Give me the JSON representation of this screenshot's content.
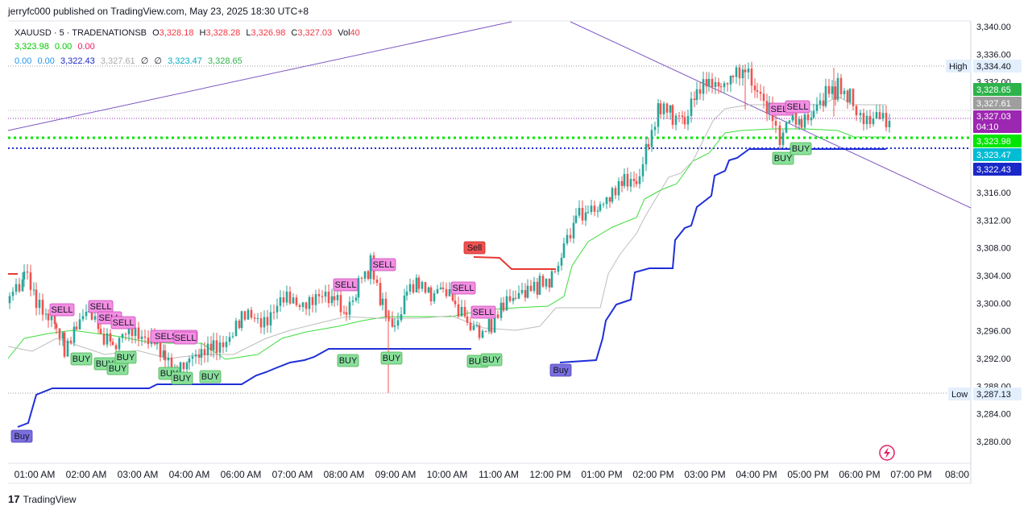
{
  "header": {
    "publisher": "jerryfc000 published on TradingView.com, May 23, 2025 18:30 UTC+8"
  },
  "legend": {
    "symbol": "XAUUSD · 5 · TRADENATIONSB",
    "o_label": "O",
    "o_value": "3,328.18",
    "h_label": "H",
    "h_value": "3,328.28",
    "l_label": "L",
    "l_value": "3,326.98",
    "c_label": "C",
    "c_value": "3,327.03",
    "vol_label": "Vol",
    "vol_value": "40",
    "row2": [
      "3,323.98",
      "0.00",
      "0.00"
    ],
    "row3": [
      "0.00",
      "0.00",
      "3,322.43",
      "3,327.61",
      "∅",
      "∅",
      "3,323.47",
      "3,328.65"
    ]
  },
  "colors": {
    "up": "#26a69a",
    "down": "#ef5350",
    "buy_badge": "#89e09a",
    "sell_badge": "#f48fe3",
    "blue_line": "#1f2fd8",
    "green_line": "#3ddc3d",
    "purple_line": "#7e57c2"
  },
  "price_axis": {
    "ticks": [
      "3,340.00",
      "3,336.00",
      "3,332.00",
      "3,316.00",
      "3,312.00",
      "3,308.00",
      "3,304.00",
      "3,300.00",
      "3,296.00",
      "3,292.00",
      "3,288.00",
      "3,284.00",
      "3,280.00"
    ],
    "high_label": "High",
    "high_value": "3,334.40",
    "low_label": "Low",
    "low_value": "3,287.13",
    "price_tags": [
      {
        "value": "3,328.65",
        "color": "#2db34a"
      },
      {
        "value": "3,327.61",
        "color": "#9e9e9e"
      },
      {
        "value": "3,327.03",
        "color": "#9c27b0",
        "sub": "04:10"
      },
      {
        "value": "3,323.98",
        "color": "#00e600"
      },
      {
        "value": "3,323.47",
        "color": "#00bcd4"
      },
      {
        "value": "3,322.43",
        "color": "#1a28c8"
      }
    ]
  },
  "time_axis": {
    "labels": [
      "01:00 AM",
      "02:00 AM",
      "03:00 AM",
      "04:00 AM",
      "06:00 AM",
      "07:00 AM",
      "08:00 AM",
      "09:00 AM",
      "10:00 AM",
      "11:00 AM",
      "12:00 PM",
      "01:00 PM",
      "02:00 PM",
      "03:00 PM",
      "04:00 PM",
      "05:00 PM",
      "06:00 PM",
      "07:00 PM",
      "08:00"
    ]
  },
  "signals": {
    "buy_big": "Buy",
    "sell_big": "Sell",
    "buy": "BUY",
    "sell": "SELL",
    "sellsell": "SELSELL"
  },
  "footer": {
    "brand": "TradingView"
  }
}
